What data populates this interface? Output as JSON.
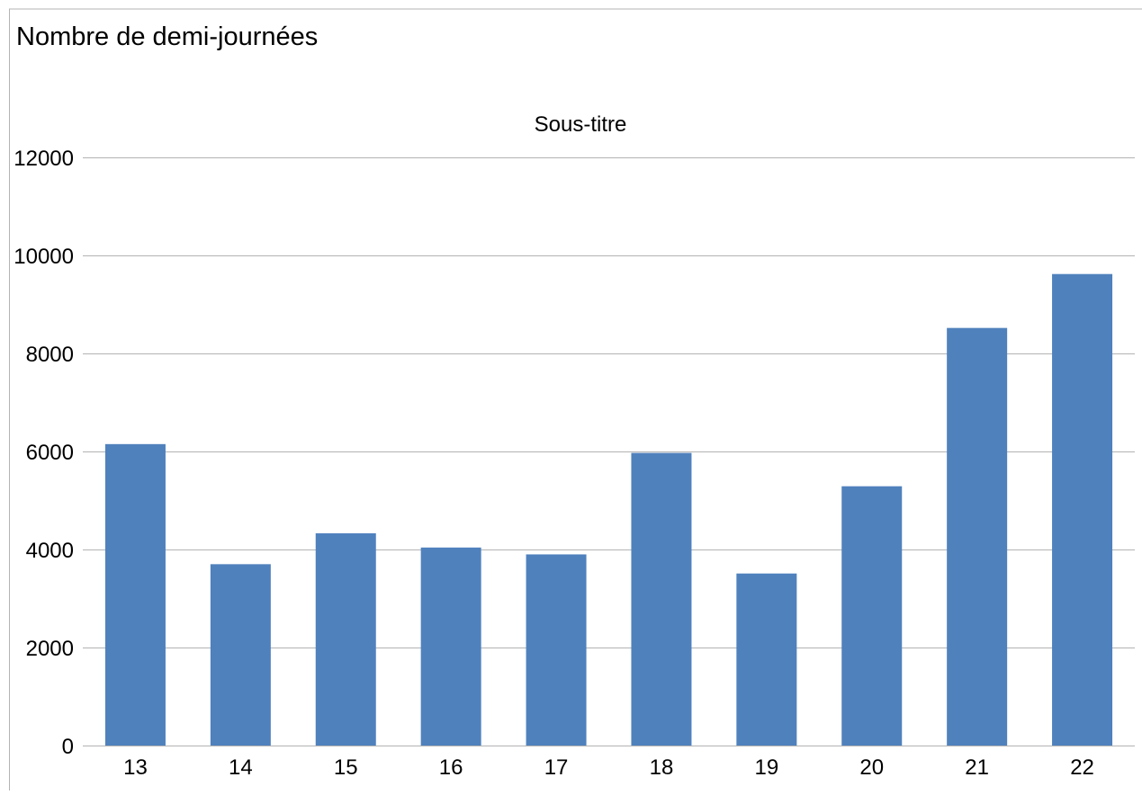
{
  "chart_data": {
    "type": "bar",
    "title": "Nombre de demi-journées",
    "subtitle": "Sous-titre",
    "categories": [
      "13",
      "14",
      "15",
      "16",
      "17",
      "18",
      "19",
      "20",
      "21",
      "22"
    ],
    "series": [
      {
        "values": [
          6150,
          3700,
          4330,
          4040,
          3900,
          5970,
          3510,
          5290,
          8520,
          9620
        ],
        "color": "#4f81bd"
      }
    ],
    "ylim": [
      0,
      12000
    ],
    "yticks": [
      "0",
      "2000",
      "4000",
      "6000",
      "8000",
      "10000",
      "12000"
    ],
    "grid": true,
    "legend": "none"
  }
}
